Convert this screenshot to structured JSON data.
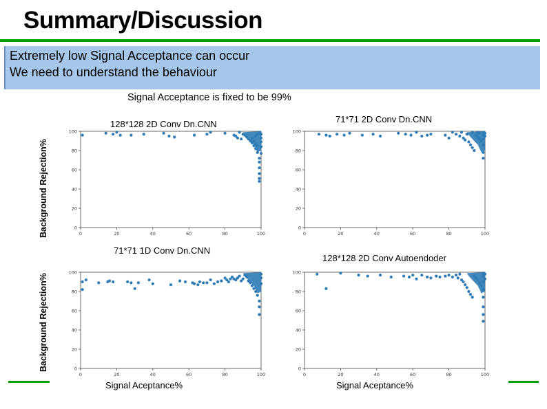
{
  "slide": {
    "title": "Summary/Discussion",
    "bullets": [
      "Extremely low Signal Acceptance can occur",
      "We need to understand the behaviour"
    ],
    "subtitle": "Signal Acceptance is fixed to be 99%",
    "ylabel": "Background Rejection%",
    "xlabel": "Signal Aceptance%"
  },
  "colors": {
    "accent_green": "#00a000",
    "box_blue": "#a7c7ea",
    "point_blue": "#2c7bb6"
  },
  "chart_data": [
    {
      "type": "scatter",
      "title": "128*128 2D Conv Dn.CNN",
      "xlim": [
        0,
        100
      ],
      "ylim": [
        0,
        100
      ],
      "xticks": [
        0,
        20,
        40,
        60,
        80,
        100
      ],
      "yticks": [
        0,
        20,
        40,
        60,
        80,
        100
      ],
      "points": [
        [
          1,
          96
        ],
        [
          14,
          98
        ],
        [
          18,
          97
        ],
        [
          20,
          99
        ],
        [
          22,
          96
        ],
        [
          28,
          96
        ],
        [
          35,
          97
        ],
        [
          46,
          98
        ],
        [
          49,
          95
        ],
        [
          52,
          94
        ],
        [
          63,
          96
        ],
        [
          70,
          97
        ],
        [
          72,
          99
        ],
        [
          80,
          98
        ],
        [
          85,
          96
        ],
        [
          86,
          95
        ],
        [
          87,
          93
        ],
        [
          88,
          99
        ],
        [
          89,
          92
        ],
        [
          90,
          97
        ],
        [
          91,
          96
        ],
        [
          92,
          94
        ],
        [
          93,
          92
        ],
        [
          94,
          90
        ],
        [
          95,
          88
        ],
        [
          96,
          85
        ],
        [
          97,
          82
        ],
        [
          98,
          78
        ],
        [
          99,
          72
        ],
        [
          99,
          68
        ],
        [
          99,
          62
        ],
        [
          99,
          56
        ],
        [
          99,
          51
        ],
        [
          99,
          48
        ],
        [
          98,
          85
        ],
        [
          97,
          87
        ],
        [
          96,
          90
        ],
        [
          95,
          93
        ],
        [
          97,
          95
        ],
        [
          98,
          97
        ],
        [
          99,
          99
        ],
        [
          100,
          97
        ],
        [
          100,
          93
        ],
        [
          100,
          89
        ],
        [
          100,
          84
        ],
        [
          100,
          77
        ]
      ]
    },
    {
      "type": "scatter",
      "title": "71*71 2D Conv Dn.CNN",
      "xlim": [
        0,
        100
      ],
      "ylim": [
        0,
        100
      ],
      "xticks": [
        0,
        20,
        40,
        60,
        80,
        100
      ],
      "yticks": [
        0,
        20,
        40,
        60,
        80,
        100
      ],
      "points": [
        [
          8,
          97
        ],
        [
          12,
          96
        ],
        [
          14,
          95
        ],
        [
          18,
          97
        ],
        [
          22,
          96
        ],
        [
          25,
          98
        ],
        [
          32,
          96
        ],
        [
          38,
          97
        ],
        [
          42,
          95
        ],
        [
          52,
          98
        ],
        [
          56,
          97
        ],
        [
          59,
          96
        ],
        [
          62,
          99
        ],
        [
          65,
          95
        ],
        [
          68,
          96
        ],
        [
          70,
          97
        ],
        [
          78,
          96
        ],
        [
          80,
          93
        ],
        [
          82,
          99
        ],
        [
          84,
          97
        ],
        [
          86,
          95
        ],
        [
          87,
          99
        ],
        [
          88,
          93
        ],
        [
          89,
          91
        ],
        [
          90,
          97
        ],
        [
          91,
          89
        ],
        [
          92,
          86
        ],
        [
          93,
          83
        ],
        [
          94,
          80
        ],
        [
          95,
          96
        ],
        [
          96,
          94
        ],
        [
          97,
          92
        ],
        [
          98,
          90
        ],
        [
          99,
          99
        ],
        [
          99,
          96
        ],
        [
          99,
          92
        ],
        [
          99,
          86
        ],
        [
          99,
          78
        ],
        [
          99,
          72
        ],
        [
          100,
          98
        ],
        [
          100,
          95
        ],
        [
          97,
          98
        ],
        [
          93,
          99
        ],
        [
          96,
          99
        ]
      ]
    },
    {
      "type": "scatter",
      "title": "71*71 1D Conv Dn.CNN",
      "xlim": [
        0,
        100
      ],
      "ylim": [
        0,
        100
      ],
      "xticks": [
        0,
        20,
        40,
        60,
        80,
        100
      ],
      "yticks": [
        0,
        20,
        40,
        60,
        80,
        100
      ],
      "points": [
        [
          1,
          90
        ],
        [
          1,
          82
        ],
        [
          3,
          92
        ],
        [
          10,
          89
        ],
        [
          15,
          90
        ],
        [
          16,
          91
        ],
        [
          18,
          90
        ],
        [
          26,
          90
        ],
        [
          28,
          89
        ],
        [
          30,
          83
        ],
        [
          32,
          89
        ],
        [
          38,
          92
        ],
        [
          40,
          88
        ],
        [
          50,
          87
        ],
        [
          55,
          91
        ],
        [
          58,
          90
        ],
        [
          62,
          89
        ],
        [
          63,
          88
        ],
        [
          65,
          87
        ],
        [
          66,
          90
        ],
        [
          68,
          89
        ],
        [
          70,
          89
        ],
        [
          72,
          92
        ],
        [
          74,
          88
        ],
        [
          76,
          90
        ],
        [
          78,
          91
        ],
        [
          80,
          94
        ],
        [
          81,
          92
        ],
        [
          82,
          90
        ],
        [
          83,
          93
        ],
        [
          84,
          95
        ],
        [
          85,
          93
        ],
        [
          86,
          92
        ],
        [
          87,
          94
        ],
        [
          88,
          96
        ],
        [
          89,
          91
        ],
        [
          90,
          93
        ],
        [
          91,
          97
        ],
        [
          92,
          95
        ],
        [
          93,
          91
        ],
        [
          94,
          89
        ],
        [
          95,
          86
        ],
        [
          96,
          83
        ],
        [
          97,
          80
        ],
        [
          98,
          76
        ],
        [
          99,
          70
        ],
        [
          99,
          64
        ],
        [
          99,
          56
        ],
        [
          100,
          98
        ],
        [
          100,
          94
        ],
        [
          100,
          88
        ]
      ]
    },
    {
      "type": "scatter",
      "title": "128*128 2D Conv Autoendoder",
      "xlim": [
        0,
        100
      ],
      "ylim": [
        0,
        100
      ],
      "xticks": [
        0,
        20,
        40,
        60,
        80,
        100
      ],
      "yticks": [
        0,
        20,
        40,
        60,
        80,
        100
      ],
      "points": [
        [
          7,
          98
        ],
        [
          12,
          83
        ],
        [
          20,
          99
        ],
        [
          30,
          97
        ],
        [
          35,
          96
        ],
        [
          42,
          97
        ],
        [
          48,
          95
        ],
        [
          55,
          96
        ],
        [
          58,
          95
        ],
        [
          60,
          97
        ],
        [
          62,
          93
        ],
        [
          65,
          97
        ],
        [
          68,
          95
        ],
        [
          70,
          94
        ],
        [
          73,
          96
        ],
        [
          75,
          95
        ],
        [
          78,
          96
        ],
        [
          80,
          97
        ],
        [
          82,
          95
        ],
        [
          84,
          97
        ],
        [
          85,
          94
        ],
        [
          86,
          98
        ],
        [
          87,
          92
        ],
        [
          88,
          90
        ],
        [
          89,
          87
        ],
        [
          90,
          84
        ],
        [
          91,
          80
        ],
        [
          92,
          77
        ],
        [
          93,
          74
        ],
        [
          94,
          96
        ],
        [
          95,
          94
        ],
        [
          96,
          92
        ],
        [
          97,
          89
        ],
        [
          98,
          86
        ],
        [
          99,
          99
        ],
        [
          99,
          96
        ],
        [
          99,
          90
        ],
        [
          99,
          82
        ],
        [
          99,
          74
        ],
        [
          99,
          64
        ],
        [
          99,
          56
        ],
        [
          99,
          49
        ],
        [
          100,
          98
        ],
        [
          100,
          93
        ]
      ]
    }
  ]
}
